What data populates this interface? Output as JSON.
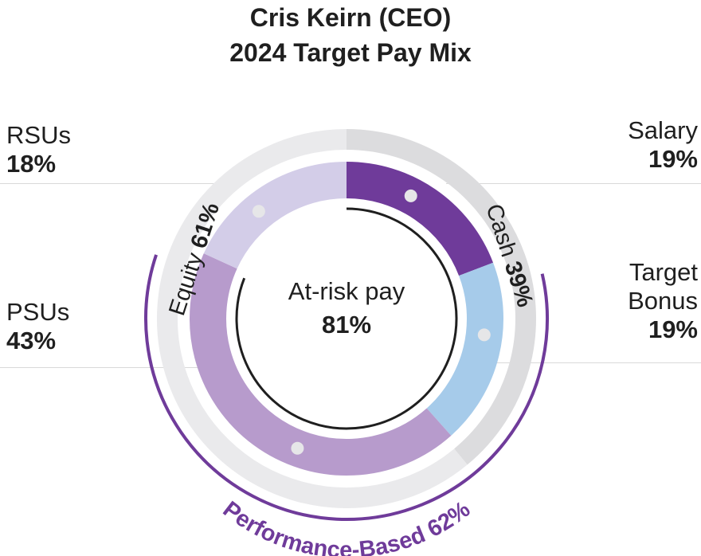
{
  "title_line1": "Cris Keirn (CEO)",
  "title_line2": "2024 Target Pay Mix",
  "labels": {
    "rsus": {
      "name": "RSUs",
      "pct": "18%"
    },
    "psus": {
      "name": "PSUs",
      "pct": "43%"
    },
    "salary": {
      "name": "Salary",
      "pct": "19%"
    },
    "bonus": {
      "name_line1": "Target",
      "name_line2": "Bonus",
      "pct": "19%"
    }
  },
  "center": {
    "line1": "At-risk pay",
    "line2": "81%",
    "value": 81
  },
  "ring_labels": {
    "cash_word": "Cash",
    "cash_pct": "39%",
    "equity_word": "Equity",
    "equity_pct": "61%",
    "performance": "Performance-Based 62%"
  },
  "colors": {
    "salary": "#6f3b9a",
    "bonus": "#a6cbea",
    "psus": "#b79bcc",
    "rsus": "#d3cde8",
    "outer_cash": "#dcdcde",
    "outer_equity": "#eaeaec",
    "accent": "#6f3b9a"
  },
  "chart_data": {
    "type": "pie",
    "title": "Cris Keirn (CEO) 2024 Target Pay Mix",
    "series": [
      {
        "name": "Components",
        "categories": [
          "Salary",
          "Target Bonus",
          "PSUs",
          "RSUs"
        ],
        "values": [
          19,
          19,
          43,
          18
        ]
      },
      {
        "name": "Groups",
        "categories": [
          "Cash",
          "Equity"
        ],
        "values": [
          39,
          61
        ]
      }
    ],
    "annotations": [
      {
        "text": "At-risk pay",
        "value": 81
      },
      {
        "text": "Performance-Based",
        "value": 62
      }
    ]
  }
}
